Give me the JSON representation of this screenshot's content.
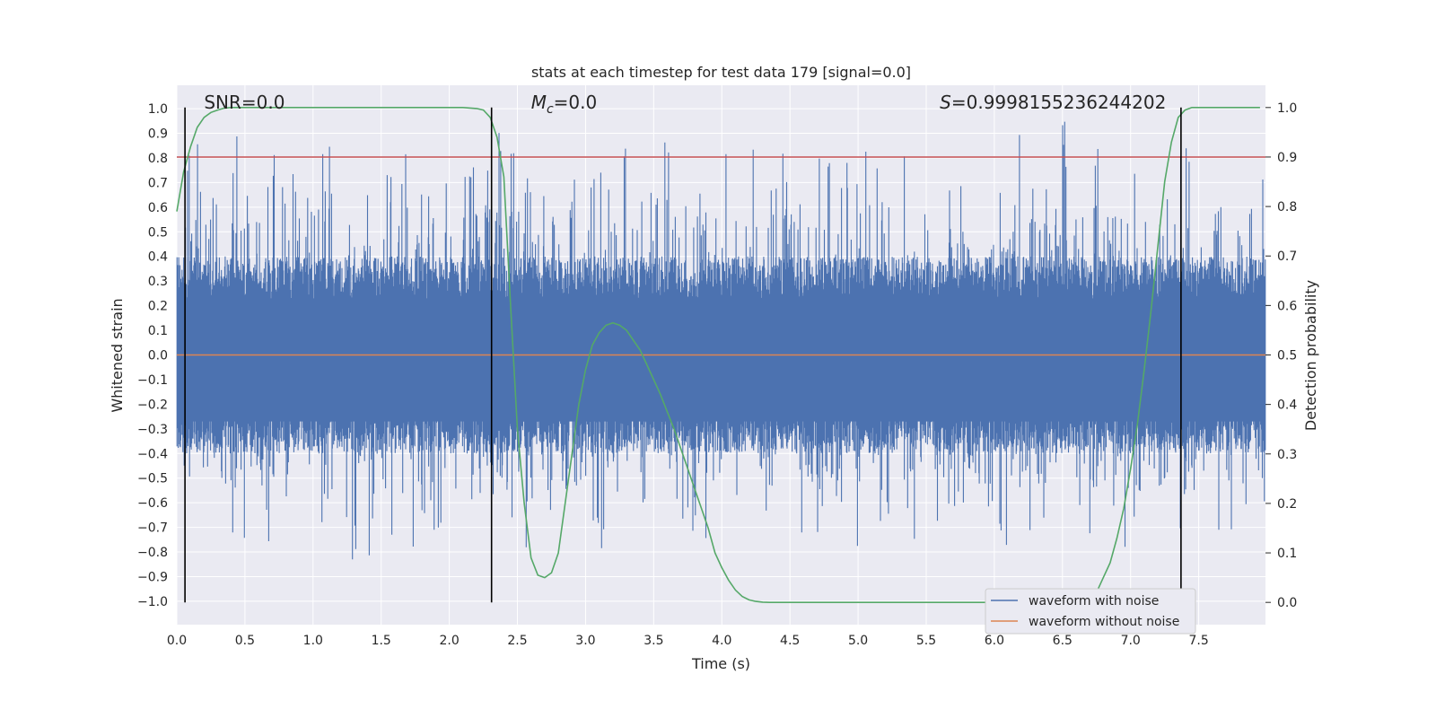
{
  "chart_data": {
    "type": "line",
    "title": "stats at each timestep for test data 179 [signal=0.0]",
    "xlabel": "Time (s)",
    "ylabel": "Whitened strain",
    "y2label": "Detection probability",
    "xlim": [
      0.0,
      7.99
    ],
    "ylim": [
      -1.095,
      1.095
    ],
    "y2lim": [
      -0.045,
      1.045
    ],
    "xticks": [
      0.0,
      0.5,
      1.0,
      1.5,
      2.0,
      2.5,
      3.0,
      3.5,
      4.0,
      4.5,
      5.0,
      5.5,
      6.0,
      6.5,
      7.0,
      7.5
    ],
    "xtick_labels": [
      "0.0",
      "0.5",
      "1.0",
      "1.5",
      "2.0",
      "2.5",
      "3.0",
      "3.5",
      "4.0",
      "4.5",
      "5.0",
      "5.5",
      "6.0",
      "6.5",
      "7.0",
      "7.5"
    ],
    "yticks": [
      1.0,
      0.9,
      0.8,
      0.7,
      0.6,
      0.5,
      0.4,
      0.3,
      0.2,
      0.1,
      0.0,
      -0.1,
      -0.2,
      -0.3,
      -0.4,
      -0.5,
      -0.6,
      -0.7,
      -0.8,
      -0.9,
      -1.0
    ],
    "ytick_labels": [
      "1.0",
      "0.9",
      "0.8",
      "0.7",
      "0.6",
      "0.5",
      "0.4",
      "0.3",
      "0.2",
      "0.1",
      "0.0",
      "−0.1",
      "−0.2",
      "−0.3",
      "−0.4",
      "−0.5",
      "−0.6",
      "−0.7",
      "−0.8",
      "−0.9",
      "−1.0"
    ],
    "y2ticks": [
      1.0,
      0.9,
      0.8,
      0.7,
      0.6,
      0.5,
      0.4,
      0.3,
      0.2,
      0.1,
      0.0
    ],
    "y2tick_labels": [
      "1.0",
      "0.9",
      "0.8",
      "0.7",
      "0.6",
      "0.5",
      "0.4",
      "0.3",
      "0.2",
      "0.1",
      "0.0"
    ],
    "threshold": {
      "value": 0.9,
      "axis": "right",
      "color": "#c44e52"
    },
    "vlines": [
      0.06,
      2.31,
      7.37
    ],
    "noise_waveform": {
      "name": "waveform with noise",
      "color": "#4c72b0",
      "description": "dense whitened noise spanning the full time range, roughly within -0.8 to 0.98",
      "typical_amplitude": 0.4,
      "max": 0.98,
      "min": -0.83
    },
    "clean_waveform": {
      "name": "waveform without noise",
      "color": "#dd8452",
      "x": [
        0.0,
        7.99
      ],
      "y": [
        0.0,
        0.0
      ]
    },
    "detection_probability": {
      "name": "Detection probability",
      "color": "#55a868",
      "axis": "right",
      "x": [
        0.0,
        0.05,
        0.1,
        0.15,
        0.2,
        0.25,
        0.3,
        0.35,
        0.4,
        0.5,
        0.6,
        0.8,
        1.0,
        1.5,
        2.0,
        2.1,
        2.2,
        2.25,
        2.3,
        2.35,
        2.4,
        2.45,
        2.5,
        2.55,
        2.6,
        2.65,
        2.7,
        2.75,
        2.8,
        2.85,
        2.9,
        2.95,
        3.0,
        3.05,
        3.1,
        3.15,
        3.2,
        3.25,
        3.3,
        3.35,
        3.4,
        3.45,
        3.5,
        3.55,
        3.6,
        3.65,
        3.7,
        3.75,
        3.8,
        3.85,
        3.9,
        3.95,
        4.0,
        4.05,
        4.1,
        4.15,
        4.2,
        4.25,
        4.3,
        4.35,
        4.4,
        4.45,
        4.5,
        4.6,
        4.8,
        5.0,
        5.5,
        6.0,
        6.5,
        6.6,
        6.7,
        6.75,
        6.8,
        6.85,
        6.9,
        6.95,
        7.0,
        7.05,
        7.1,
        7.15,
        7.2,
        7.25,
        7.3,
        7.35,
        7.4,
        7.45,
        7.5,
        7.55,
        7.6,
        7.65,
        7.7,
        7.75,
        7.8,
        7.85,
        7.9,
        7.95
      ],
      "y": [
        0.79,
        0.87,
        0.92,
        0.96,
        0.98,
        0.99,
        0.995,
        0.999,
        1.0,
        1.0,
        1.0,
        1.0,
        1.0,
        1.0,
        1.0,
        1.0,
        0.998,
        0.995,
        0.98,
        0.94,
        0.86,
        0.6,
        0.35,
        0.2,
        0.09,
        0.055,
        0.05,
        0.06,
        0.1,
        0.2,
        0.3,
        0.4,
        0.47,
        0.52,
        0.545,
        0.56,
        0.565,
        0.56,
        0.55,
        0.53,
        0.51,
        0.48,
        0.45,
        0.42,
        0.385,
        0.35,
        0.31,
        0.27,
        0.23,
        0.19,
        0.15,
        0.1,
        0.07,
        0.045,
        0.025,
        0.012,
        0.005,
        0.002,
        0.0005,
        0.0,
        0.0,
        0.0,
        0.0,
        0.0,
        0.0,
        0.0,
        0.0,
        0.0,
        0.0,
        0.0,
        0.002,
        0.02,
        0.05,
        0.08,
        0.13,
        0.19,
        0.27,
        0.36,
        0.47,
        0.59,
        0.72,
        0.85,
        0.93,
        0.98,
        0.995,
        1.0,
        1.0,
        1.0,
        1.0,
        1.0,
        1.0,
        1.0,
        1.0,
        1.0,
        1.0,
        1.0
      ]
    },
    "annotations": [
      {
        "id": "snr",
        "text": "SNR=0.0",
        "x": 0.2
      },
      {
        "id": "mc",
        "label": "M",
        "sub": "c",
        "value": "=0.0",
        "x": 2.6
      },
      {
        "id": "s",
        "label": "S",
        "value": "=0.9998155236244202",
        "x": 5.6
      }
    ],
    "legend": {
      "position": "lower-right",
      "entries": [
        {
          "label": "waveform with noise",
          "color": "#4c72b0"
        },
        {
          "label": "waveform without noise",
          "color": "#dd8452"
        }
      ]
    },
    "grid": true
  }
}
